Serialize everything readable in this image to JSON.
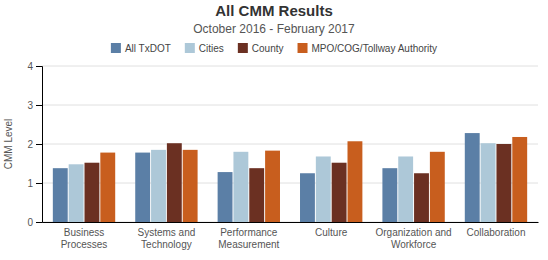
{
  "chart_data": {
    "type": "bar",
    "title": "All CMM Results",
    "subtitle": "October 2016 - February 2017",
    "ylabel": "CMM Level",
    "categories": [
      "Business\nProcesses",
      "Systems and\nTechnology",
      "Performance\nMeasurement",
      "Culture",
      "Organization and\nWorkforce",
      "Collaboration"
    ],
    "series": [
      {
        "name": "All TxDOT",
        "color": "#5b7fa6",
        "values": [
          1.38,
          1.78,
          1.28,
          1.25,
          1.38,
          2.28
        ]
      },
      {
        "name": "Cities",
        "color": "#adc8d8",
        "values": [
          1.48,
          1.85,
          1.8,
          1.68,
          1.68,
          2.02
        ]
      },
      {
        "name": "County",
        "color": "#6b3022",
        "values": [
          1.52,
          2.02,
          1.38,
          1.52,
          1.25,
          2.0
        ]
      },
      {
        "name": "MPO/COG/Tollway Authority",
        "color": "#c85e1e",
        "values": [
          1.78,
          1.85,
          1.83,
          2.07,
          1.8,
          2.18
        ]
      }
    ],
    "ylim": [
      0,
      4
    ],
    "yticks": [
      0,
      1,
      2,
      3,
      4
    ],
    "grid": true,
    "legend": "top"
  }
}
